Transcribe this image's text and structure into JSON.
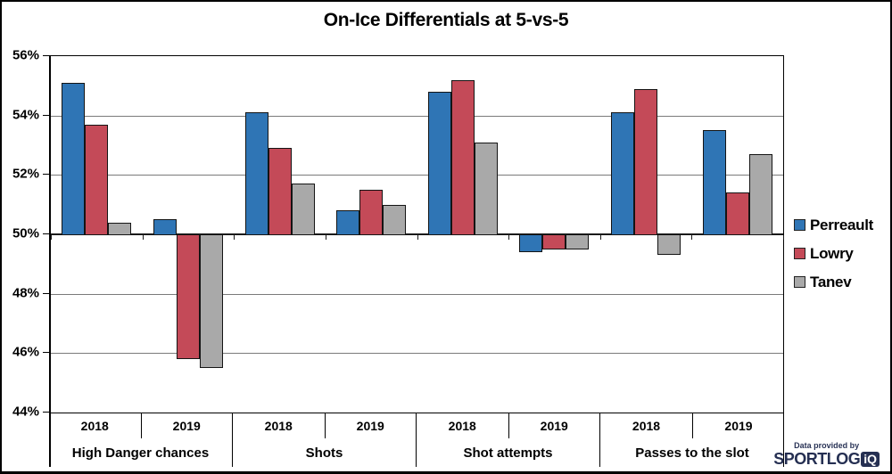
{
  "chart_data": {
    "type": "bar",
    "title": "On-Ice Differentials at 5-vs-5",
    "xlabel": "",
    "ylabel": "",
    "ylim": [
      44,
      56
    ],
    "baseline": 50,
    "grid": true,
    "legend_position": "right",
    "ytick_labels": [
      "56%",
      "54%",
      "52%",
      "50%",
      "48%",
      "46%",
      "44%"
    ],
    "ytick_values": [
      56,
      54,
      52,
      50,
      48,
      46,
      44
    ],
    "groups": [
      {
        "label": "High Danger chances",
        "years": [
          "2018",
          "2019"
        ]
      },
      {
        "label": "Shots",
        "years": [
          "2018",
          "2019"
        ]
      },
      {
        "label": "Shot attempts",
        "years": [
          "2018",
          "2019"
        ]
      },
      {
        "label": "Passes to the slot",
        "years": [
          "2018",
          "2019"
        ]
      }
    ],
    "categories": [
      "High Danger chances 2018",
      "High Danger chances 2019",
      "Shots 2018",
      "Shots 2019",
      "Shot attempts 2018",
      "Shot attempts 2019",
      "Passes to the slot 2018",
      "Passes to the slot 2019"
    ],
    "series": [
      {
        "name": "Perreault",
        "color": "#2f75b5",
        "values": [
          55.1,
          50.5,
          54.1,
          50.8,
          54.8,
          49.4,
          54.1,
          53.5
        ]
      },
      {
        "name": "Lowry",
        "color": "#c44a58",
        "values": [
          53.7,
          45.8,
          52.9,
          51.5,
          55.2,
          49.5,
          54.9,
          51.4
        ]
      },
      {
        "name": "Tanev",
        "color": "#a9a9a9",
        "values": [
          50.4,
          45.5,
          51.7,
          51.0,
          53.1,
          49.5,
          49.3,
          52.7
        ]
      }
    ]
  },
  "footer": {
    "credit": "Data provided by",
    "brand": "SPORTLOG",
    "brand_badge": "iQ"
  },
  "colors": {
    "gridline": "#7a7a7a",
    "axis": "#000000",
    "brand_navy": "#252f52"
  }
}
